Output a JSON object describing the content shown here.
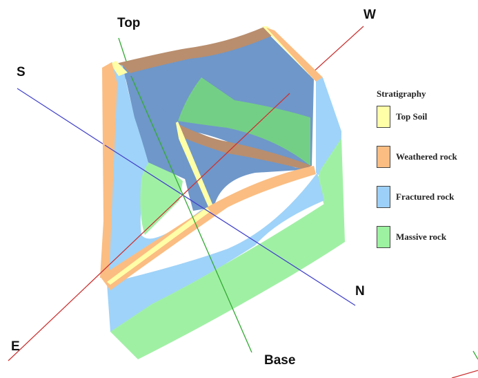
{
  "axes": {
    "top_label": "Top",
    "base_label": "Base",
    "north_label": "N",
    "south_label": "S",
    "east_label": "E",
    "west_label": "W",
    "colors": {
      "ns_axis": "#4444cc",
      "ew_axis": "#cc3333",
      "vertical_axis": "#33aa33"
    }
  },
  "legend": {
    "title": "Stratigraphy",
    "items": [
      {
        "label": "Top Soil",
        "color": "#ffffa8"
      },
      {
        "label": "Weathered rock",
        "color": "#fbbd82"
      },
      {
        "label": "Fractured rock",
        "color": "#9dd0f8"
      },
      {
        "label": "Massive rock",
        "color": "#9cf2a0"
      }
    ]
  },
  "layer_colors": {
    "top_soil": "#ffffa8",
    "weathered": "#f7b880",
    "weathered_dark": "#b98e6e",
    "fractured": "#9fd3f9",
    "fractured_dark": "#6f97c9",
    "massive": "#a0f0a4",
    "massive_dark": "#74cf86"
  }
}
